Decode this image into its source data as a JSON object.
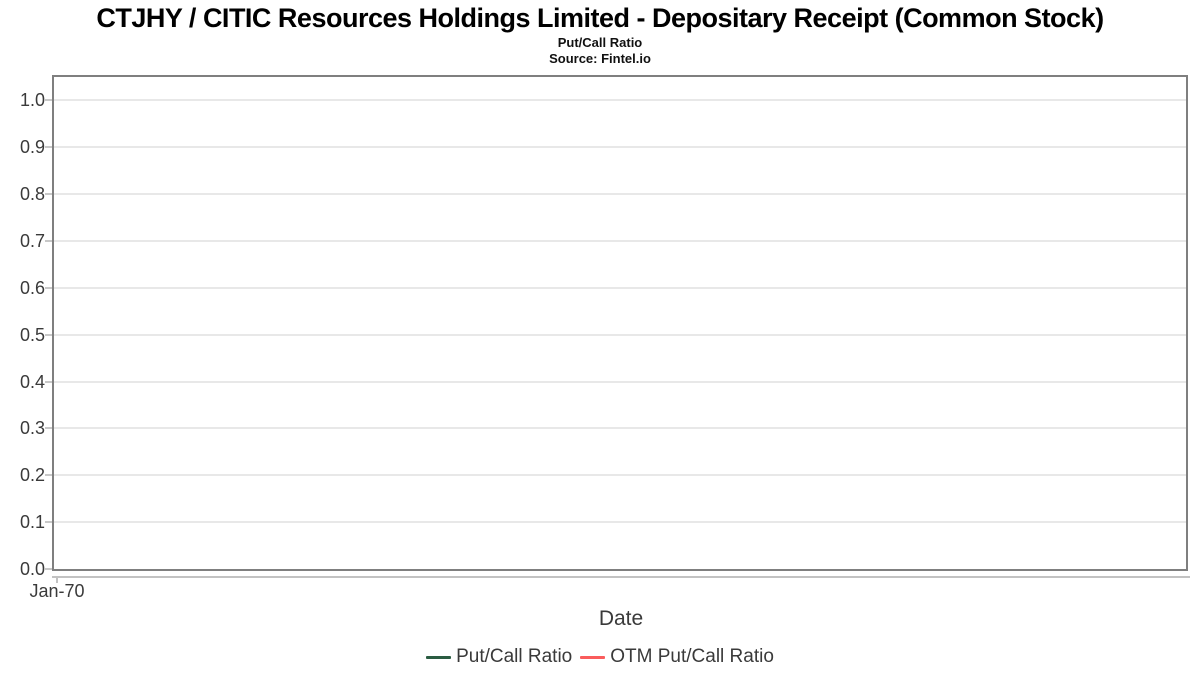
{
  "header": {
    "title": "CTJHY / CITIC Resources Holdings Limited - Depositary Receipt (Common Stock)",
    "subtitle": "Put/Call Ratio",
    "source": "Source: Fintel.io"
  },
  "chart_data": {
    "type": "line",
    "title": "CTJHY / CITIC Resources Holdings Limited - Depositary Receipt (Common Stock)",
    "subtitle": "Put/Call Ratio",
    "source": "Source: Fintel.io",
    "xlabel": "Date",
    "ylabel": "",
    "ylim": [
      0.0,
      1.05
    ],
    "y_ticks": [
      0.0,
      0.1,
      0.2,
      0.3,
      0.4,
      0.5,
      0.6,
      0.7,
      0.8,
      0.9,
      1.0
    ],
    "x_ticks": [
      "Jan-70"
    ],
    "grid": true,
    "legend_position": "bottom",
    "series": [
      {
        "name": "Put/Call Ratio",
        "color": "#2a5c41",
        "x": [],
        "values": []
      },
      {
        "name": "OTM Put/Call Ratio",
        "color": "#fa5c5c",
        "x": [],
        "values": []
      }
    ]
  },
  "colors": {
    "plot_border": "#7f7f7f",
    "gridline": "#e8e8e8",
    "axis_line": "#c2c2c2",
    "tick_label": "#3a3a3a",
    "title": "#000000"
  }
}
